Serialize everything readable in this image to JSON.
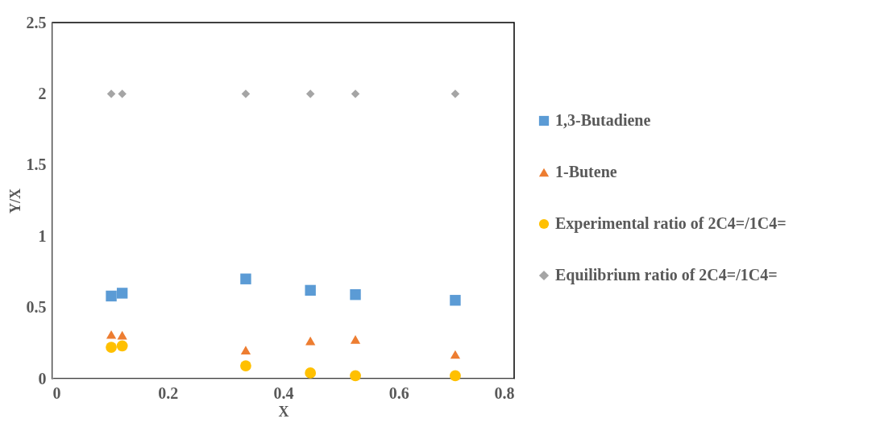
{
  "chart_data": {
    "type": "scatter",
    "xlabel": "X",
    "ylabel": "Y/X",
    "x": [
      0.102,
      0.121,
      0.335,
      0.447,
      0.525,
      0.698
    ],
    "series": [
      {
        "name": "1,3-Butadiene",
        "color": "#5b9bd5",
        "marker": "square",
        "values": [
          0.58,
          0.6,
          0.7,
          0.62,
          0.59,
          0.55
        ]
      },
      {
        "name": "1-Butene",
        "color": "#ed7d31",
        "marker": "triangle",
        "values": [
          0.31,
          0.305,
          0.2,
          0.265,
          0.275,
          0.17
        ]
      },
      {
        "name": "Experimental ratio of 2C4=/1C4=",
        "color": "#ffc000",
        "marker": "circle",
        "values": [
          0.22,
          0.23,
          0.09,
          0.04,
          0.02,
          0.02
        ]
      },
      {
        "name": "Equilibrium ratio of 2C4=/1C4=",
        "color": "#a5a5a5",
        "marker": "diamond",
        "values": [
          2,
          2,
          2,
          2,
          2,
          2
        ]
      }
    ],
    "xlim": [
      0,
      0.8
    ],
    "xticks": [
      0,
      0.2,
      0.4,
      0.6,
      0.8
    ],
    "ylim": [
      0,
      2.5
    ],
    "yticks": [
      0,
      0.5,
      1,
      1.5,
      2,
      2.5
    ],
    "grid": false,
    "legend": "right"
  }
}
